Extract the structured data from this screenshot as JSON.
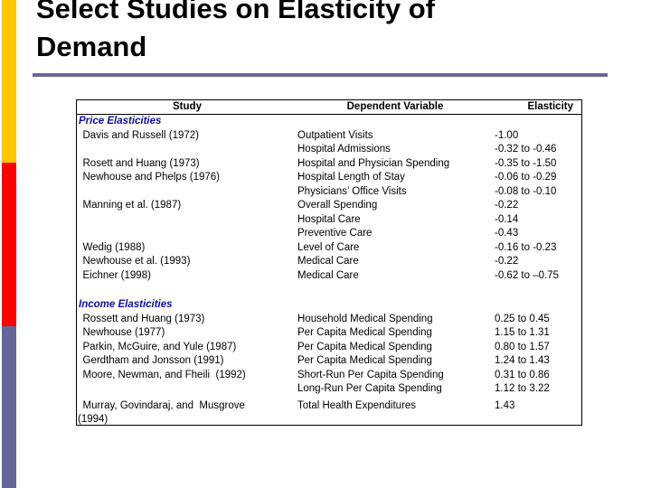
{
  "slide": {
    "title": "Select Studies on Elasticity of Demand"
  },
  "colors": {
    "accent_yellow": "#FFC500",
    "accent_red": "#FF0000",
    "accent_slate": "#666699",
    "title_rule": "#666699",
    "section_navy": "#0F0F99",
    "table_border": "#000000",
    "text": "#000000"
  },
  "table": {
    "headers": [
      "Study",
      "Dependent Variable",
      "Elasticity"
    ],
    "sections": [
      {
        "label": "Price Elasticities",
        "rows": [
          {
            "study": "Davis and Russell (1972)",
            "variable": "Outpatient Visits",
            "elasticity": "-1.00"
          },
          {
            "study": "",
            "variable": "Hospital Admissions",
            "elasticity": "-0.32 to -0.46"
          },
          {
            "study": "Rosett and Huang (1973)",
            "variable": "Hospital and Physician Spending",
            "elasticity": "-0.35 to -1.50"
          },
          {
            "study": "Newhouse and Phelps (1976)",
            "variable": "Hospital Length of Stay",
            "elasticity": "-0.06 to -0.29"
          },
          {
            "study": "",
            "variable": "Physicians’ Office Visits",
            "elasticity": "-0.08 to -0.10"
          },
          {
            "study": "Manning et al. (1987)",
            "variable": "Overall Spending",
            "elasticity": "-0.22"
          },
          {
            "study": "",
            "variable": "Hospital Care",
            "elasticity": "-0.14"
          },
          {
            "study": "",
            "variable": "Preventive Care",
            "elasticity": "-0.43"
          },
          {
            "study": "Wedig (1988)",
            "variable": "Level of Care",
            "elasticity": "-0.16 to -0.23"
          },
          {
            "study": "Newhouse et al. (1993)",
            "variable": "Medical Care",
            "elasticity": "-0.22"
          },
          {
            "study": "Eichner (1998)",
            "variable": "Medical Care",
            "elasticity": "-0.62 to –0.75"
          }
        ]
      },
      {
        "label": "Income Elasticities",
        "rows": [
          {
            "study": "Rossett and Huang (1973)",
            "variable": "Household Medical Spending",
            "elasticity": "0.25 to 0.45"
          },
          {
            "study": "Newhouse (1977)",
            "variable": "Per Capita Medical Spending",
            "elasticity": "1.15 to 1.31"
          },
          {
            "study": "Parkin, McGuire, and Yule (1987)",
            "variable": "Per Capita Medical Spending",
            "elasticity": "0.80 to 1.57"
          },
          {
            "study": "Gerdtham and Jonsson (1991)",
            "variable": "Per Capita Medical Spending",
            "elasticity": "1.24 to 1.43"
          },
          {
            "study": "Moore, Newman, and Fheili  (1992)",
            "variable": "Short-Run Per Capita Spending",
            "elasticity": "0.31 to 0.86"
          },
          {
            "study": "",
            "variable": "Long-Run Per Capita Spending",
            "elasticity": "1.12 to 3.22"
          },
          {
            "study": "Murray, Govindaraj, and  Musgrove",
            "study2": "(1994)",
            "top_gap": 3,
            "variable": "Total Health Expenditures",
            "elasticity": "1.43"
          }
        ]
      }
    ]
  }
}
